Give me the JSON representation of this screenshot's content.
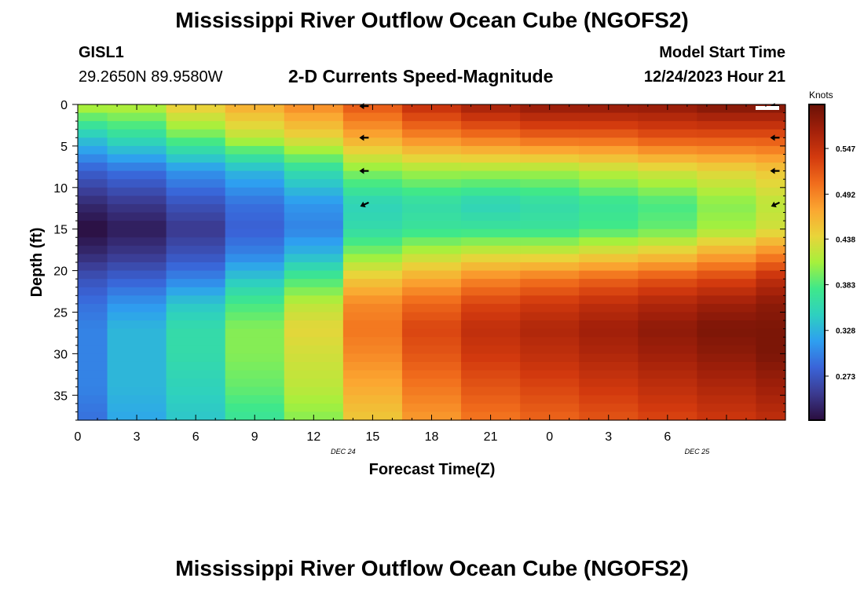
{
  "header": {
    "title": "Mississippi River Outflow Ocean Cube (NGOFS2)",
    "station": "GISL1",
    "coords": "29.2650N  89.9580W",
    "product": "2-D Currents Speed-Magnitude",
    "model_start_label": "Model Start Time",
    "model_start_value": "12/24/2023 Hour 21"
  },
  "footer": {
    "title": "Mississippi River Outflow Ocean Cube (NGOFS2)"
  },
  "chart_data": {
    "type": "heatmap",
    "xlabel": "Forecast Time(Z)",
    "ylabel": "Depth (ft)",
    "x_ticks": [
      "0",
      "3",
      "6",
      "9",
      "12",
      "15",
      "18",
      "21",
      "0",
      "3",
      "6"
    ],
    "x_range_hours": [
      0,
      36
    ],
    "y_ticks": [
      "0",
      "5",
      "10",
      "15",
      "20",
      "25",
      "30",
      "35"
    ],
    "y_range_ft": [
      0,
      38
    ],
    "date_labels": [
      {
        "text": "DEC 24",
        "hour": 13.5
      },
      {
        "text": "DEC 25",
        "hour": 31.5
      }
    ],
    "columns_hour": [
      0.75,
      3,
      6,
      9,
      12,
      15,
      18,
      21,
      24,
      27,
      30,
      33,
      35.25
    ],
    "column_edges_hour": [
      0,
      1.5,
      4.5,
      7.5,
      10.5,
      13.5,
      16.5,
      19.5,
      22.5,
      25.5,
      28.5,
      31.5,
      34.5,
      36
    ],
    "rows_depth_ft": [
      0,
      4,
      8,
      12,
      15,
      18,
      21,
      24,
      27,
      30,
      34,
      38
    ],
    "speed_knots": [
      [
        0.42,
        0.42,
        0.45,
        0.47,
        0.49,
        0.52,
        0.55,
        0.57,
        0.58,
        0.58,
        0.58,
        0.59,
        0.59
      ],
      [
        0.34,
        0.36,
        0.39,
        0.42,
        0.44,
        0.47,
        0.49,
        0.5,
        0.51,
        0.51,
        0.52,
        0.52,
        0.52
      ],
      [
        0.28,
        0.29,
        0.31,
        0.33,
        0.36,
        0.4,
        0.41,
        0.41,
        0.41,
        0.42,
        0.43,
        0.44,
        0.45
      ],
      [
        0.24,
        0.25,
        0.27,
        0.29,
        0.31,
        0.35,
        0.36,
        0.35,
        0.36,
        0.37,
        0.38,
        0.4,
        0.42
      ],
      [
        0.22,
        0.23,
        0.25,
        0.28,
        0.3,
        0.36,
        0.37,
        0.37,
        0.37,
        0.38,
        0.39,
        0.41,
        0.43
      ],
      [
        0.24,
        0.25,
        0.27,
        0.3,
        0.33,
        0.4,
        0.42,
        0.43,
        0.43,
        0.44,
        0.45,
        0.47,
        0.49
      ],
      [
        0.27,
        0.28,
        0.3,
        0.34,
        0.38,
        0.45,
        0.47,
        0.49,
        0.5,
        0.51,
        0.52,
        0.53,
        0.55
      ],
      [
        0.29,
        0.31,
        0.34,
        0.38,
        0.42,
        0.49,
        0.51,
        0.53,
        0.54,
        0.55,
        0.56,
        0.57,
        0.58
      ],
      [
        0.3,
        0.33,
        0.36,
        0.4,
        0.44,
        0.5,
        0.53,
        0.55,
        0.56,
        0.57,
        0.58,
        0.59,
        0.59
      ],
      [
        0.3,
        0.33,
        0.36,
        0.4,
        0.43,
        0.49,
        0.52,
        0.54,
        0.55,
        0.56,
        0.57,
        0.58,
        0.59
      ],
      [
        0.3,
        0.33,
        0.35,
        0.39,
        0.42,
        0.47,
        0.5,
        0.52,
        0.53,
        0.54,
        0.55,
        0.56,
        0.57
      ],
      [
        0.29,
        0.32,
        0.34,
        0.37,
        0.4,
        0.45,
        0.48,
        0.5,
        0.51,
        0.52,
        0.53,
        0.54,
        0.55
      ]
    ],
    "vector_arrows": [
      {
        "hour": 14.8,
        "depth": 0.2,
        "dir": "W"
      },
      {
        "hour": 14.8,
        "depth": 4.0,
        "dir": "W"
      },
      {
        "hour": 14.8,
        "depth": 8.0,
        "dir": "W"
      },
      {
        "hour": 14.8,
        "depth": 11.8,
        "dir": "NW"
      },
      {
        "hour": 35.7,
        "depth": 0.2,
        "dir": "W"
      },
      {
        "hour": 35.7,
        "depth": 4.0,
        "dir": "W"
      },
      {
        "hour": 35.7,
        "depth": 8.0,
        "dir": "W"
      },
      {
        "hour": 35.7,
        "depth": 11.8,
        "dir": "NW"
      }
    ],
    "colorbar": {
      "unit": "Knots",
      "range": [
        0.22,
        0.6
      ],
      "tick_values": [
        0.273,
        0.328,
        0.383,
        0.438,
        0.492,
        0.547
      ],
      "tick_labels": [
        "0.273",
        "0.328",
        "0.383",
        "0.438",
        "0.492",
        "0.547"
      ],
      "colormap": [
        "#2a0d3d",
        "#3b3a8f",
        "#3a64d8",
        "#2e9ff0",
        "#2ed0c0",
        "#3fe88a",
        "#a6f03c",
        "#e9d43a",
        "#fba631",
        "#f16d1c",
        "#d33a0e",
        "#a2200a",
        "#6a1106"
      ]
    }
  }
}
